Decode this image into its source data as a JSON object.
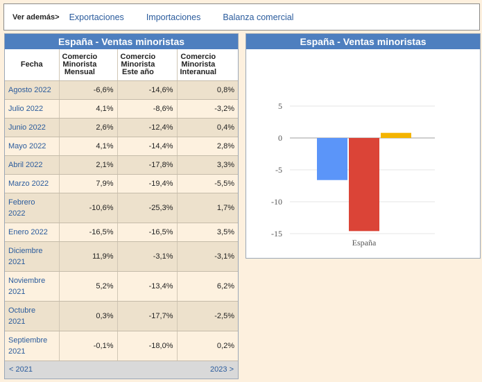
{
  "nav": {
    "label": "Ver además>",
    "links": [
      "Exportaciones",
      "Importaciones",
      "Balanza comercial"
    ]
  },
  "table": {
    "title": "España - Ventas minoristas",
    "headers": {
      "col0": "Fecha",
      "col1": [
        "Comercio",
        "Minorista",
        "Mensual"
      ],
      "col2": [
        "Comercio",
        "Minorista",
        "Este año"
      ],
      "col3": [
        "Comercio",
        "Minorista",
        "Interanual"
      ]
    },
    "rows": [
      {
        "date": [
          "Agosto 2022"
        ],
        "mensual": "-6,6%",
        "este_ano": "-14,6%",
        "interanual": "0,8%"
      },
      {
        "date": [
          "Julio 2022"
        ],
        "mensual": "4,1%",
        "este_ano": "-8,6%",
        "interanual": "-3,2%"
      },
      {
        "date": [
          "Junio 2022"
        ],
        "mensual": "2,6%",
        "este_ano": "-12,4%",
        "interanual": "0,4%"
      },
      {
        "date": [
          "Mayo 2022"
        ],
        "mensual": "4,1%",
        "este_ano": "-14,4%",
        "interanual": "2,8%"
      },
      {
        "date": [
          "Abril 2022"
        ],
        "mensual": "2,1%",
        "este_ano": "-17,8%",
        "interanual": "3,3%"
      },
      {
        "date": [
          "Marzo 2022"
        ],
        "mensual": "7,9%",
        "este_ano": "-19,4%",
        "interanual": "-5,5%"
      },
      {
        "date": [
          "Febrero",
          "2022"
        ],
        "mensual": "-10,6%",
        "este_ano": "-25,3%",
        "interanual": "1,7%"
      },
      {
        "date": [
          "Enero 2022"
        ],
        "mensual": "-16,5%",
        "este_ano": "-16,5%",
        "interanual": "3,5%"
      },
      {
        "date": [
          "Diciembre",
          "2021"
        ],
        "mensual": "11,9%",
        "este_ano": "-3,1%",
        "interanual": "-3,1%"
      },
      {
        "date": [
          "Noviembre",
          "2021"
        ],
        "mensual": "5,2%",
        "este_ano": "-13,4%",
        "interanual": "6,2%"
      },
      {
        "date": [
          "Octubre",
          "2021"
        ],
        "mensual": "0,3%",
        "este_ano": "-17,7%",
        "interanual": "-2,5%"
      },
      {
        "date": [
          "Septiembre",
          "2021"
        ],
        "mensual": "-0,1%",
        "este_ano": "-18,0%",
        "interanual": "0,2%"
      }
    ],
    "prev": "< 2021",
    "next": "2023 >"
  },
  "chart_data": {
    "type": "bar",
    "title": "España - Ventas minoristas",
    "categories": [
      "España"
    ],
    "series": [
      {
        "values": [
          -6.6
        ],
        "color": "#5b95f9"
      },
      {
        "values": [
          -14.6
        ],
        "color": "#db4437"
      },
      {
        "values": [
          0.8
        ],
        "color": "#f4b400"
      }
    ],
    "yticks": [
      5,
      0,
      -5,
      -10,
      -15
    ],
    "ylim": [
      -15,
      5
    ],
    "grid": true,
    "legend": "none"
  }
}
